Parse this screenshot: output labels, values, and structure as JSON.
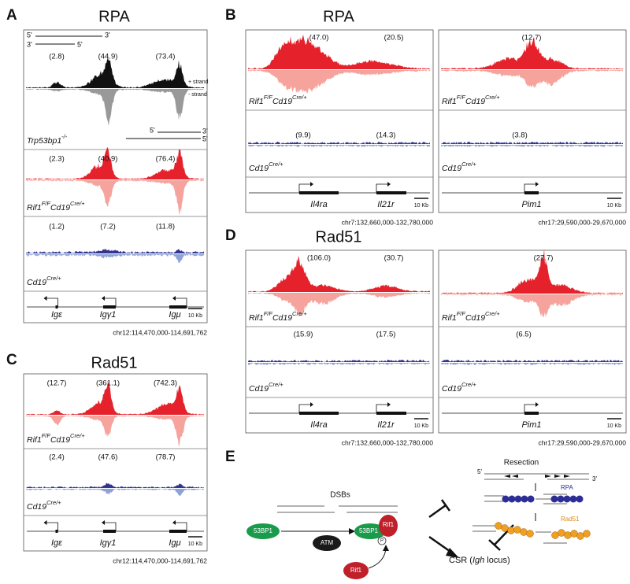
{
  "panels": {
    "A": {
      "letter": "A",
      "title": "RPA",
      "strand_diagram": [
        "5'",
        "3'",
        "3'",
        "5'"
      ],
      "inset_strand": [
        "5'",
        "3'",
        "5'"
      ],
      "boxes": [
        {
          "tracks": [
            {
              "numbers": [
                "(2.8)",
                "(44.9)",
                "(73.4)"
              ],
              "strand_labels": [
                "+ strand",
                "- strand"
              ],
              "label": [
                {
                  "text": "Trp53bp1",
                  "sup": "-/-"
                }
              ]
            },
            {
              "numbers": [
                "(2.3)",
                "(40.9)",
                "(76.4)"
              ],
              "label": [
                {
                  "text": "Rif1",
                  "sup": "F/F"
                },
                {
                  "text": "Cd19",
                  "sup": "Cre/+"
                }
              ]
            },
            {
              "numbers": [
                "(1.2)",
                "(7.2)",
                "(11.8)"
              ],
              "label": [
                {
                  "text": "Cd19",
                  "sup": "Cre/+"
                }
              ]
            }
          ],
          "genes": [
            "Igε",
            "Igγ1",
            "Igμ"
          ],
          "scale": "10 Kb",
          "coord": "chr12:114,470,000-114,691,762"
        }
      ]
    },
    "B": {
      "letter": "B",
      "title": "RPA",
      "boxes": [
        {
          "tracks": [
            {
              "numbers": [
                "(47.0)",
                "(20.5)"
              ],
              "label": [
                {
                  "text": "Rif1",
                  "sup": "F/F"
                },
                {
                  "text": "Cd19",
                  "sup": "Cre/+"
                }
              ]
            },
            {
              "numbers": [
                "(9.9)",
                "(14.3)"
              ],
              "label": [
                {
                  "text": "Cd19",
                  "sup": "Cre/+"
                }
              ]
            }
          ],
          "genes": [
            "Il4ra",
            "Il21r"
          ],
          "scale": "10 Kb",
          "coord": "chr7:132,660,000-132,780,000"
        },
        {
          "tracks": [
            {
              "numbers": [
                "(12.7)"
              ],
              "label": [
                {
                  "text": "Rif1",
                  "sup": "F/F"
                },
                {
                  "text": "Cd19",
                  "sup": "Cre/+"
                }
              ]
            },
            {
              "numbers": [
                "(3.8)"
              ],
              "label": [
                {
                  "text": "Cd19",
                  "sup": "Cre/+"
                }
              ]
            }
          ],
          "genes": [
            "Pim1"
          ],
          "scale": "10 Kb",
          "coord": "chr17:29,590,000-29,670,000"
        }
      ]
    },
    "C": {
      "letter": "C",
      "title": "Rad51",
      "boxes": [
        {
          "tracks": [
            {
              "numbers": [
                "(12.7)",
                "(361.1)",
                "(742.3)"
              ],
              "label": [
                {
                  "text": "Rif1",
                  "sup": "F/F"
                },
                {
                  "text": "Cd19",
                  "sup": "Cre/+"
                }
              ]
            },
            {
              "numbers": [
                "(2.4)",
                "(47.6)",
                "(78.7)"
              ],
              "label": [
                {
                  "text": "Cd19",
                  "sup": "Cre/+"
                }
              ]
            }
          ],
          "genes": [
            "Igε",
            "Igγ1",
            "Igμ"
          ],
          "scale": "10 Kb",
          "coord": "chr12:114,470,000-114,691,762"
        }
      ]
    },
    "D": {
      "letter": "D",
      "title": "Rad51",
      "boxes": [
        {
          "tracks": [
            {
              "numbers": [
                "(106.0)",
                "(30.7)"
              ],
              "label": [
                {
                  "text": "Rif1",
                  "sup": "F/F"
                },
                {
                  "text": "Cd19",
                  "sup": "Cre/+"
                }
              ]
            },
            {
              "numbers": [
                "(15.9)",
                "(17.5)"
              ],
              "label": [
                {
                  "text": "Cd19",
                  "sup": "Cre/+"
                }
              ]
            }
          ],
          "genes": [
            "Il4ra",
            "Il21r"
          ],
          "scale": "10 Kb",
          "coord": "chr7:132,660,000-132,780,000"
        },
        {
          "tracks": [
            {
              "numbers": [
                "(27.7)"
              ],
              "label": [
                {
                  "text": "Rif1",
                  "sup": "F/F"
                },
                {
                  "text": "Cd19",
                  "sup": "Cre/+"
                }
              ]
            },
            {
              "numbers": [
                "(6.5)"
              ],
              "label": [
                {
                  "text": "Cd19",
                  "sup": "Cre/+"
                }
              ]
            }
          ],
          "genes": [
            "Pim1"
          ],
          "scale": "10 Kb",
          "coord": "chr17:29,590,000-29,670,000"
        }
      ]
    },
    "E": {
      "letter": "E",
      "dsbs": "DSBs",
      "proteins": [
        "53BP1",
        "ATM",
        "53BP1",
        "Rif1",
        "P",
        "Rif1"
      ],
      "resection": "Resection",
      "strand_ends": [
        "5'",
        "3'"
      ],
      "rpa": "RPA",
      "rad51": "Rad51",
      "csr": [
        "CSR (",
        "Igh",
        " locus)"
      ]
    }
  }
}
